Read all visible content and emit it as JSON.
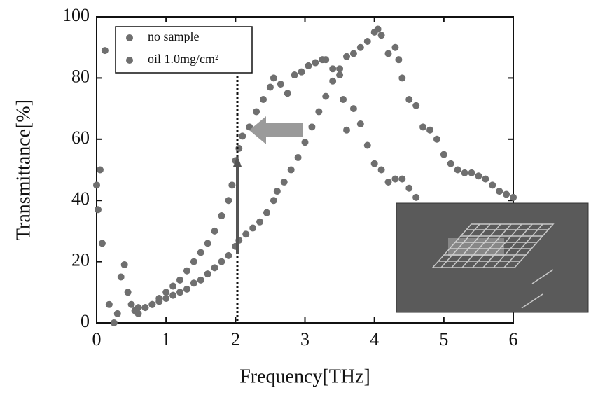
{
  "chart_data": {
    "type": "scatter",
    "xlabel": "Frequency[THz]",
    "ylabel": "Transmittance[%]",
    "xlim": [
      0,
      6
    ],
    "xticks": [
      0,
      1,
      2,
      3,
      4,
      5,
      6
    ],
    "ylim": [
      0,
      100
    ],
    "yticks": [
      0,
      20,
      40,
      60,
      80,
      100
    ],
    "legend": "upper left",
    "series": [
      {
        "name": "no sample",
        "color": "#6f6f6f",
        "x": [
          0.6,
          0.7,
          0.8,
          0.9,
          1.0,
          1.1,
          1.2,
          1.3,
          1.4,
          1.5,
          1.6,
          1.7,
          1.8,
          1.9,
          2.0,
          2.05,
          2.15,
          2.25,
          2.35,
          2.45,
          2.55,
          2.6,
          2.7,
          2.8,
          2.9,
          3.0,
          3.1,
          3.2,
          3.3,
          3.4,
          3.5,
          3.6,
          3.7,
          3.8,
          3.9,
          4.0,
          4.05,
          4.1,
          4.2,
          4.3,
          4.35,
          4.4,
          4.5,
          4.6,
          4.7,
          4.8,
          4.9,
          5.0,
          5.1,
          5.2,
          5.3,
          5.4,
          5.5,
          5.6,
          5.7,
          5.8,
          5.9,
          6.0
        ],
        "values": [
          5,
          5,
          6,
          7,
          8,
          9,
          10,
          11,
          13,
          14,
          16,
          18,
          20,
          22,
          25,
          27,
          29,
          31,
          33,
          36,
          40,
          43,
          46,
          50,
          54,
          59,
          64,
          69,
          74,
          79,
          83,
          87,
          88,
          90,
          92,
          95,
          96,
          94,
          88,
          90,
          86,
          80,
          73,
          71,
          64,
          63,
          60,
          55,
          52,
          50,
          49,
          49,
          48,
          47,
          45,
          43,
          42,
          41
        ]
      },
      {
        "name": "oil 1.0mg/cm²",
        "color": "#6f6f6f",
        "x": [
          0.0,
          0.02,
          0.05,
          0.08,
          0.12,
          0.18,
          0.25,
          0.3,
          0.35,
          0.4,
          0.45,
          0.5,
          0.55,
          0.6,
          0.7,
          0.8,
          0.9,
          1.0,
          1.1,
          1.2,
          1.3,
          1.4,
          1.5,
          1.6,
          1.7,
          1.8,
          1.9,
          1.95,
          2.0,
          2.05,
          2.1,
          2.2,
          2.3,
          2.4,
          2.5,
          2.55,
          2.65,
          2.75,
          2.85,
          2.95,
          3.05,
          3.15,
          3.25,
          3.3,
          3.4,
          3.5,
          3.55,
          3.6,
          3.7,
          3.8,
          3.9,
          4.0,
          4.1,
          4.2,
          4.3,
          4.4,
          4.5,
          4.6
        ],
        "values": [
          45,
          37,
          50,
          26,
          89,
          6,
          0,
          3,
          15,
          19,
          10,
          6,
          4,
          3,
          5,
          6,
          8,
          10,
          12,
          14,
          17,
          20,
          23,
          26,
          30,
          35,
          40,
          45,
          53,
          57,
          61,
          64,
          69,
          73,
          77,
          80,
          78,
          75,
          81,
          82,
          84,
          85,
          86,
          86,
          83,
          81,
          73,
          63,
          70,
          65,
          58,
          52,
          50,
          46,
          47,
          47,
          44,
          41
        ]
      }
    ]
  }
}
